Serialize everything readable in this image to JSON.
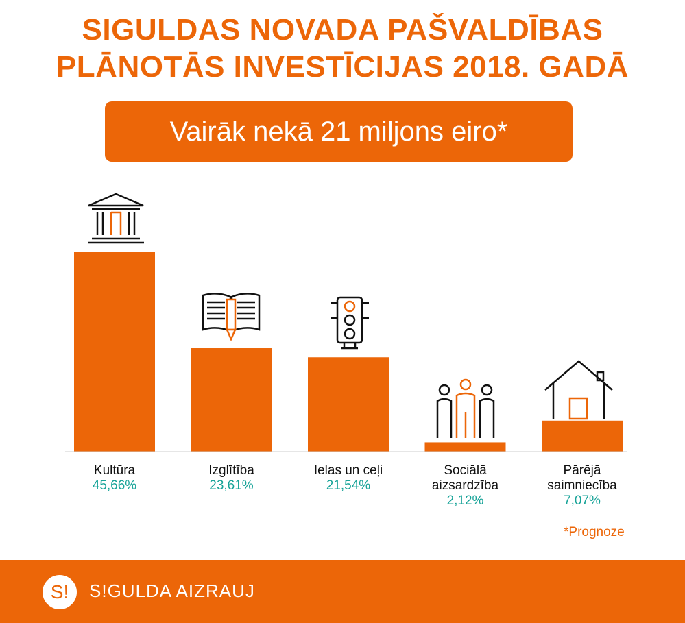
{
  "header": {
    "title_line1": "SIGULDAS NOVADA PAŠVALDĪBAS",
    "title_line2": "PLĀNOTĀS INVESTĪCIJAS 2018. GADĀ",
    "banner": "Vairāk nekā 21 miljons eiro*"
  },
  "colors": {
    "accent": "#ec6608",
    "percent": "#17a398"
  },
  "chart_data": {
    "type": "bar",
    "categories": [
      "Kultūra",
      "Izglītība",
      "Ielas un ceļi",
      "Sociālā aizsardzība",
      "Pārējā saimniecība"
    ],
    "category_lines": [
      [
        "Kultūra"
      ],
      [
        "Izglītība"
      ],
      [
        "Ielas un ceļi"
      ],
      [
        "Sociālā",
        "aizsardzība"
      ],
      [
        "Pārējā",
        "saimniecība"
      ]
    ],
    "values": [
      45.66,
      23.61,
      21.54,
      2.12,
      7.07
    ],
    "value_labels": [
      "45,66%",
      "23,61%",
      "21,54%",
      "2,12%",
      "7,07%"
    ],
    "icons": [
      "museum-icon",
      "book-pencil-icon",
      "traffic-light-icon",
      "people-icon",
      "house-icon"
    ]
  },
  "footnote": "*Prognoze",
  "footer": {
    "logo": "S!",
    "brand": "S!GULDA AIZRAUJ"
  }
}
